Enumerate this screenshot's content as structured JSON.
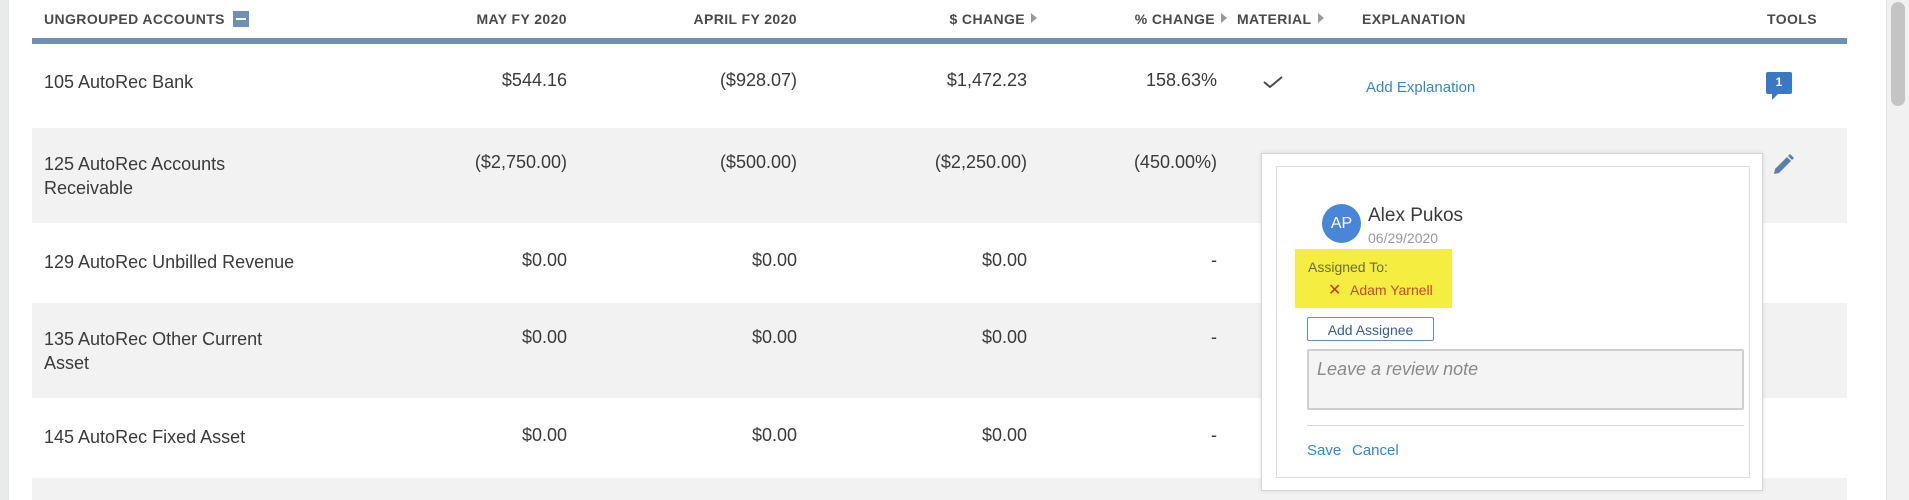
{
  "header": {
    "group_title": "UNGROUPED ACCOUNTS",
    "col_current": "MAY FY 2020",
    "col_prior": "APRIL FY 2020",
    "col_dollar_change": "$ CHANGE",
    "col_pct_change": "% CHANGE",
    "col_material": "MATERIAL",
    "col_explanation": "EXPLANATION",
    "col_tools": "TOOLS"
  },
  "rows": [
    {
      "account": "105 AutoRec Bank",
      "current": "$544.16",
      "prior": "($928.07)",
      "dollar_change": "$1,472.23",
      "pct_change": "158.63%",
      "material": true,
      "explanation_link": "Add Explanation",
      "comment_count": "1"
    },
    {
      "account": "125 AutoRec Accounts Receivable",
      "current": "($2,750.00)",
      "prior": "($500.00)",
      "dollar_change": "($2,250.00)",
      "pct_change": "(450.00%)"
    },
    {
      "account": "129 AutoRec Unbilled Revenue",
      "current": "$0.00",
      "prior": "$0.00",
      "dollar_change": "$0.00",
      "pct_change": "-"
    },
    {
      "account": "135 AutoRec Other Current Asset",
      "current": "$0.00",
      "prior": "$0.00",
      "dollar_change": "$0.00",
      "pct_change": "-"
    },
    {
      "account": "145 AutoRec Fixed Asset",
      "current": "$0.00",
      "prior": "$0.00",
      "dollar_change": "$0.00",
      "pct_change": "-"
    }
  ],
  "review_popup": {
    "avatar_initials": "AP",
    "user_name": "Alex Pukos",
    "date": "06/29/2020",
    "assigned_label": "Assigned To:",
    "assignee": "Adam Yarnell",
    "add_assignee_label": "Add Assignee",
    "note_placeholder": "Leave a review note",
    "save_label": "Save",
    "cancel_label": "Cancel"
  },
  "colors": {
    "accent": "#6f8fb5",
    "link": "#3d84c6",
    "avatar": "#4a86d8",
    "highlight": "#f5ee41",
    "remove": "#d0342c"
  }
}
